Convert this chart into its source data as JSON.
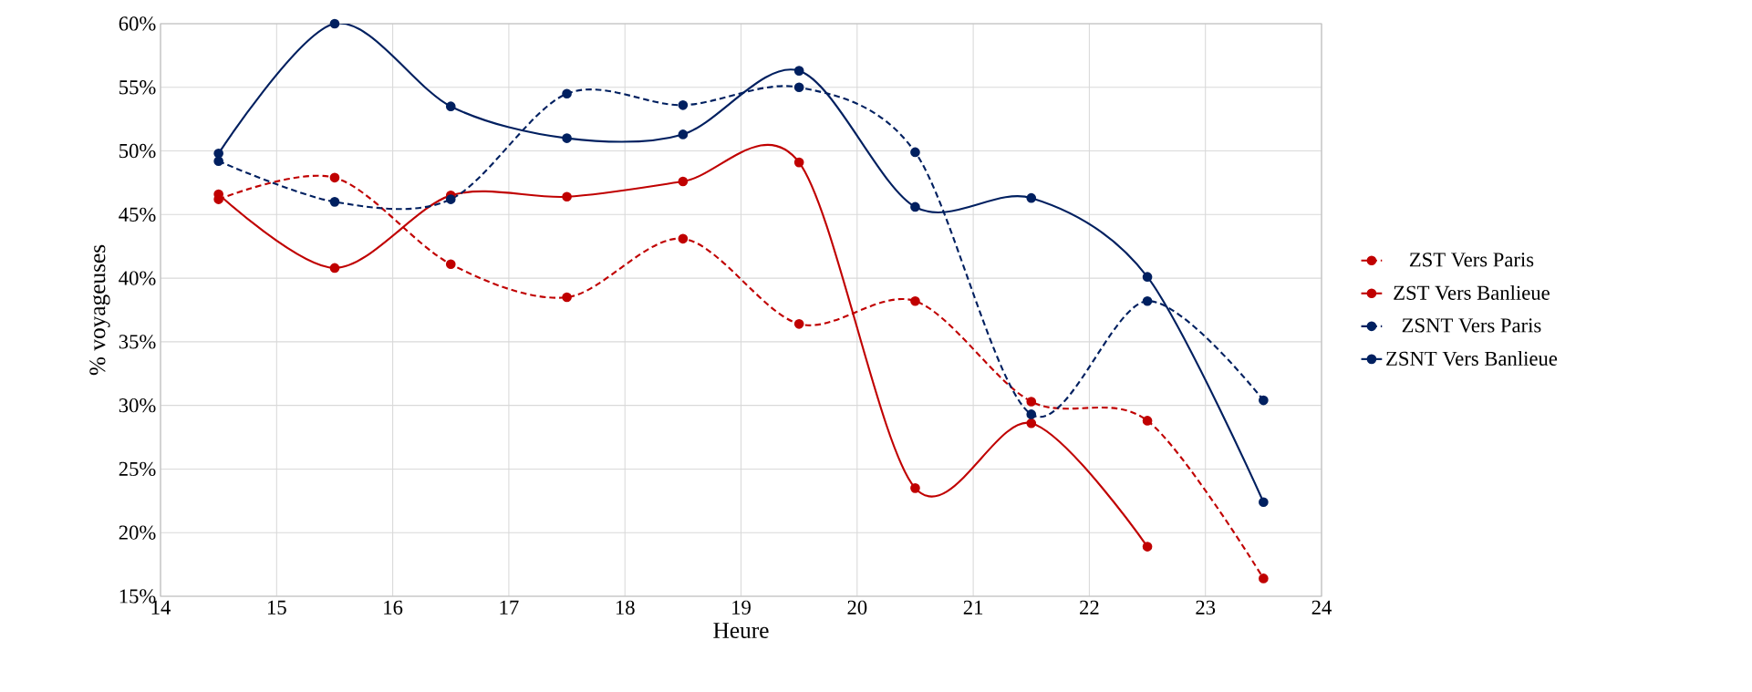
{
  "chart_data": {
    "type": "line",
    "xlabel": "Heure",
    "ylabel": "% voyageuses",
    "x": [
      14.5,
      15.5,
      16.5,
      17.5,
      18.5,
      19.5,
      20.5,
      21.5,
      22.5,
      23.5
    ],
    "xlim": [
      14,
      24
    ],
    "xticks": [
      14,
      15,
      16,
      17,
      18,
      19,
      20,
      21,
      22,
      23,
      24
    ],
    "ylim": [
      15,
      60
    ],
    "yticks": [
      {
        "value": 15,
        "label": "15%"
      },
      {
        "value": 20,
        "label": "20%"
      },
      {
        "value": 25,
        "label": "25%"
      },
      {
        "value": 30,
        "label": "30%"
      },
      {
        "value": 35,
        "label": "35%"
      },
      {
        "value": 40,
        "label": "40%"
      },
      {
        "value": 45,
        "label": "45%"
      },
      {
        "value": 50,
        "label": "50%"
      },
      {
        "value": 55,
        "label": "55%"
      },
      {
        "value": 60,
        "label": "60%"
      }
    ],
    "grid": true,
    "legend": "right",
    "marker": "circle",
    "series": [
      {
        "name": "ZST Vers Paris",
        "color": "#c00000",
        "line_style": "dashed",
        "values": [
          46.2,
          47.9,
          41.1,
          38.5,
          43.1,
          36.4,
          38.2,
          30.3,
          28.8,
          16.4
        ]
      },
      {
        "name": "ZST Vers Banlieue",
        "color": "#c00000",
        "line_style": "solid",
        "values": [
          46.6,
          40.8,
          46.5,
          46.4,
          47.6,
          49.1,
          23.5,
          28.6,
          18.9,
          null
        ]
      },
      {
        "name": "ZSNT Vers Paris",
        "color": "#002060",
        "line_style": "dashed",
        "values": [
          49.2,
          46.0,
          46.2,
          54.5,
          53.6,
          55.0,
          49.9,
          29.3,
          38.2,
          30.4
        ]
      },
      {
        "name": "ZSNT Vers Banlieue",
        "color": "#002060",
        "line_style": "solid",
        "values": [
          49.8,
          60.0,
          53.5,
          51.0,
          51.3,
          56.3,
          45.6,
          46.3,
          40.1,
          22.4
        ]
      }
    ]
  }
}
